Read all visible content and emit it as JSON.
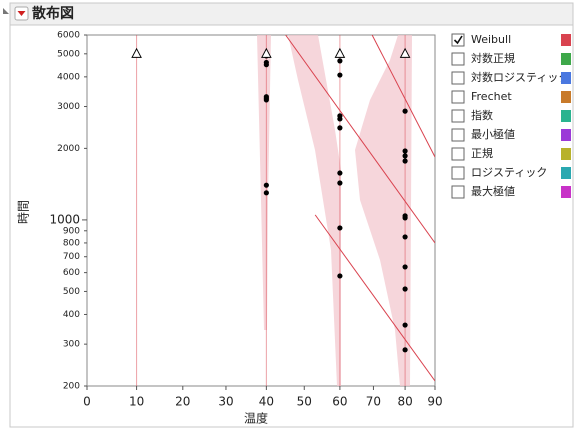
{
  "header": {
    "title": "散布図"
  },
  "chart_data": {
    "type": "scatter",
    "x_label": "温度",
    "y_label": "時間",
    "xscale": "arrhenius",
    "yscale": "log",
    "xlim": [
      0,
      90
    ],
    "ylim": [
      200,
      6000
    ],
    "xticks": [
      0,
      10,
      20,
      30,
      40,
      50,
      60,
      70,
      80,
      90
    ],
    "yticks": [
      200,
      300,
      400,
      500,
      600,
      700,
      800,
      900,
      1000,
      2000,
      3000,
      4000,
      5000,
      6000
    ],
    "points": {
      "color": "#000000",
      "x": [
        40,
        40,
        40,
        40,
        40,
        40,
        40,
        40,
        60,
        60,
        60,
        60,
        60,
        60,
        60,
        60,
        60,
        80,
        80,
        80,
        80,
        80,
        80,
        80,
        80,
        80,
        80,
        80
      ],
      "y": [
        4900,
        4600,
        4500,
        3300,
        3250,
        3200,
        1400,
        1300,
        4670,
        4070,
        2740,
        2660,
        2440,
        1575,
        1430,
        925,
        581,
        2870,
        1950,
        1860,
        1770,
        1040,
        1020,
        848,
        634,
        512,
        361,
        284
      ]
    },
    "censored": {
      "x": [
        10,
        40,
        60,
        80
      ],
      "y": [
        5000,
        5000,
        5000,
        5000
      ]
    },
    "fit_color": "#d9434f",
    "fit_lines": [
      {
        "x": [
          69.6,
          90
        ],
        "y": [
          6000,
          1840
        ]
      },
      {
        "x": [
          45,
          90
        ],
        "y": [
          6000,
          800
        ]
      },
      {
        "x": [
          53,
          90
        ],
        "y": [
          1050,
          210
        ]
      }
    ],
    "legend": {
      "items": [
        {
          "name": "Weibull",
          "color": "#d9434f",
          "checked": true
        },
        {
          "name": "対数正規",
          "color": "#3ea84a",
          "checked": false
        },
        {
          "name": "対数ロジスティック",
          "color": "#4a78e0",
          "checked": false
        },
        {
          "name": "Frechet",
          "color": "#c87a2a",
          "checked": false
        },
        {
          "name": "指数",
          "color": "#2ab38f",
          "checked": false
        },
        {
          "name": "最小極値",
          "color": "#9b3ad8",
          "checked": false
        },
        {
          "name": "正規",
          "color": "#b8b22b",
          "checked": false
        },
        {
          "name": "ロジスティック",
          "color": "#2aa8b0",
          "checked": false
        },
        {
          "name": "最大極値",
          "color": "#c832c8",
          "checked": false
        }
      ]
    }
  }
}
